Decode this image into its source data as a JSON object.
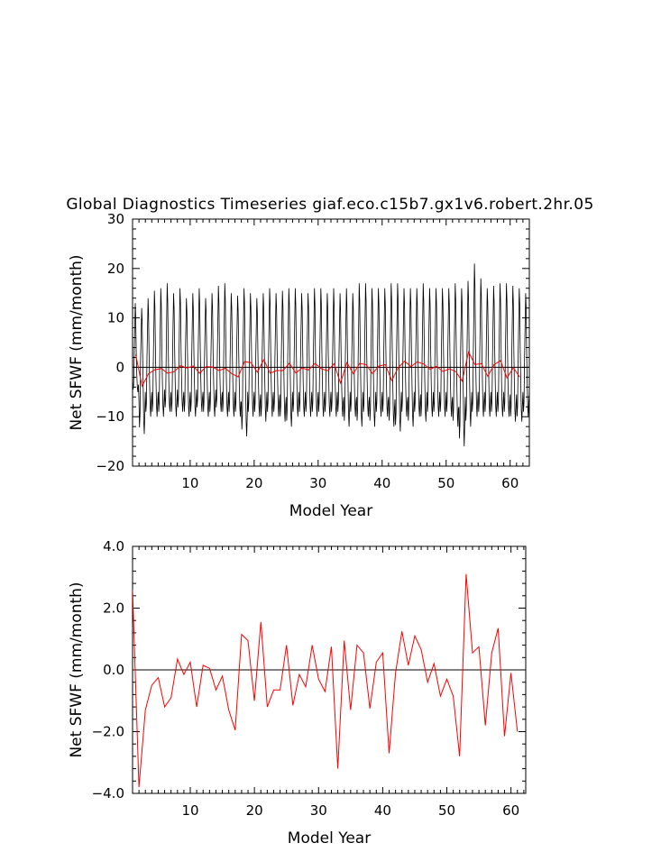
{
  "title": "Global Diagnostics Timeseries giaf.eco.c15b7.gx1v6.robert.2hr.05",
  "chart_data": [
    {
      "type": "line",
      "xlabel": "Model Year",
      "ylabel": "Net SFWF (mm/month)",
      "xlim": [
        1,
        63
      ],
      "ylim": [
        -20,
        30
      ],
      "xticks": [
        10,
        20,
        30,
        40,
        50,
        60
      ],
      "yticks": [
        -20,
        -10,
        0,
        10,
        20,
        30
      ],
      "ytick_labels": [
        "−20",
        "−10",
        "0",
        "10",
        "20",
        "30"
      ],
      "zero_line": true,
      "grid": false,
      "series": [
        {
          "color": "#000000",
          "pattern": [
            -5,
            -9,
            -7,
            2,
            8,
            14,
            11,
            3,
            -3,
            -8,
            -10,
            -7
          ],
          "annual_peaks": [
            13,
            12,
            14,
            15.5,
            16,
            17,
            15,
            16,
            14,
            15,
            16,
            14,
            15,
            16.5,
            17,
            15,
            14.5,
            16,
            15,
            14,
            15,
            16,
            15,
            15.5,
            16,
            16,
            15,
            15,
            16,
            16,
            15,
            16,
            15,
            16,
            15,
            17,
            17,
            16,
            16,
            16,
            17,
            17,
            16,
            16,
            16,
            17,
            16,
            16,
            16,
            16,
            17,
            16,
            17.5,
            21,
            18,
            16,
            16.5,
            17,
            17,
            16.5,
            16,
            15,
            16
          ],
          "annual_troughs": [
            -5,
            -13.5,
            -10,
            -10,
            -10,
            -9,
            -10,
            -9,
            -10,
            -10,
            -9,
            -10,
            -10,
            -9,
            -10,
            -10,
            -10,
            -14,
            -10,
            -10,
            -11,
            -10,
            -10,
            -11,
            -12,
            -10,
            -10,
            -10,
            -10,
            -10,
            -10,
            -10,
            -10,
            -12,
            -10,
            -12,
            -10,
            -12,
            -10,
            -10,
            -12,
            -13,
            -10,
            -12,
            -10,
            -11,
            -10,
            -10,
            -10,
            -10,
            -12,
            -16,
            -12,
            -10,
            -10,
            -10,
            -10,
            -10,
            -10,
            -11,
            -11,
            -10,
            -10
          ]
        },
        {
          "color": "#ff0000",
          "values": [
            2.6,
            -3.8,
            -1.3,
            -0.5,
            -0.25,
            -1.2,
            -0.9,
            0.35,
            -0.15,
            0.25,
            -1.2,
            0.15,
            0.05,
            -0.65,
            -0.2,
            -1.3,
            -1.95,
            1.15,
            0.95,
            -1.0,
            1.55,
            -1.2,
            -0.65,
            -0.65,
            0.8,
            -1.15,
            -0.15,
            -0.55,
            0.8,
            -0.3,
            -0.7,
            0.75,
            -3.2,
            0.95,
            -1.3,
            0.8,
            0.55,
            -1.25,
            0.25,
            0.55,
            -2.7,
            -0.1,
            1.25,
            0.15,
            1.1,
            0.65,
            -0.4,
            0.2,
            -0.85,
            -0.3,
            -0.85,
            -2.8,
            3.1,
            0.55,
            0.75,
            -1.8,
            0.55,
            1.35,
            -2.15,
            -0.1,
            -2.0
          ]
        }
      ]
    },
    {
      "type": "line",
      "xlabel": "Model Year",
      "ylabel": "Net SFWF (mm/month)",
      "xlim": [
        1,
        62.3
      ],
      "ylim": [
        -4,
        4
      ],
      "xticks": [
        10,
        20,
        30,
        40,
        50,
        60
      ],
      "yticks": [
        -4,
        -2,
        0,
        2,
        4
      ],
      "ytick_labels": [
        "−4.0",
        "−2.0",
        "0.0",
        "2.0",
        "4.0"
      ],
      "zero_line": true,
      "grid": false,
      "series": [
        {
          "color": "#ff0000",
          "x_start": 1,
          "values": [
            2.6,
            -3.8,
            -1.3,
            -0.5,
            -0.25,
            -1.2,
            -0.9,
            0.35,
            -0.15,
            0.25,
            -1.2,
            0.15,
            0.05,
            -0.65,
            -0.2,
            -1.3,
            -1.95,
            1.15,
            0.95,
            -1.0,
            1.55,
            -1.2,
            -0.65,
            -0.65,
            0.8,
            -1.15,
            -0.15,
            -0.55,
            0.8,
            -0.3,
            -0.7,
            0.75,
            -3.2,
            0.95,
            -1.3,
            0.8,
            0.55,
            -1.25,
            0.25,
            0.55,
            -2.7,
            -0.1,
            1.25,
            0.15,
            1.1,
            0.65,
            -0.4,
            0.2,
            -0.85,
            -0.3,
            -0.85,
            -2.8,
            3.1,
            0.55,
            0.75,
            -1.8,
            0.55,
            1.35,
            -2.15,
            -0.1,
            -2.0
          ]
        }
      ]
    }
  ]
}
